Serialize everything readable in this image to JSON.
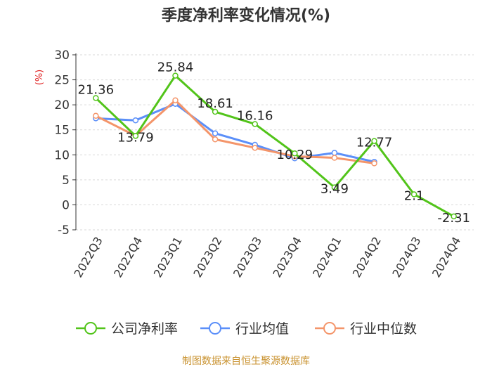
{
  "chart_data": {
    "type": "line",
    "title": "季度净利率变化情况(%)",
    "ylabel": "(%)",
    "xlabel": "",
    "ylim": [
      -5,
      30
    ],
    "yticks": [
      30,
      25,
      20,
      15,
      10,
      5,
      0,
      -5
    ],
    "categories": [
      "2022Q3",
      "2022Q4",
      "2023Q1",
      "2023Q2",
      "2023Q3",
      "2023Q4",
      "2024Q1",
      "2024Q2",
      "2024Q3",
      "2024Q4"
    ],
    "series": [
      {
        "name": "公司净利率",
        "color": "#52c41a",
        "values": [
          21.36,
          13.79,
          25.84,
          18.61,
          16.16,
          10.29,
          3.49,
          12.77,
          2.1,
          -2.31
        ],
        "labels": [
          "21.36",
          "13.79",
          "25.84",
          "18.61",
          "16.16",
          "10.29",
          "3.49",
          "12.77",
          "2.1",
          "-2.31"
        ]
      },
      {
        "name": "行业均值",
        "color": "#5b8ff9",
        "values": [
          17.3,
          16.9,
          20.2,
          14.3,
          12.0,
          9.3,
          10.4,
          8.6,
          null,
          null
        ]
      },
      {
        "name": "行业中位数",
        "color": "#f4956a",
        "values": [
          17.8,
          13.8,
          20.9,
          13.1,
          11.4,
          9.7,
          9.4,
          8.3,
          null,
          null
        ]
      }
    ],
    "grid": true,
    "legend_position": "bottom"
  },
  "source": "制图数据来自恒生聚源数据库"
}
